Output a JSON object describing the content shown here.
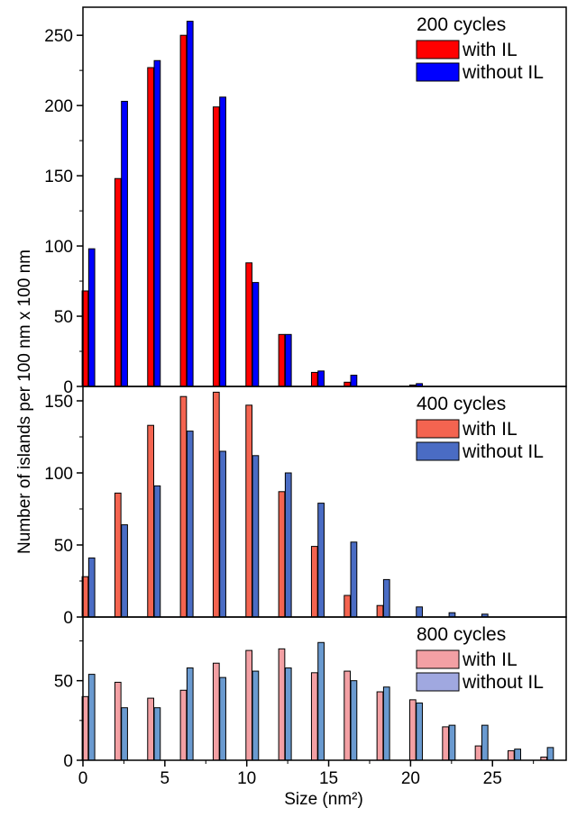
{
  "chart_data": {
    "type": "bar",
    "xlabel": "Size (nm²)",
    "ylabel": "Number of islands per 100 nm  x 100 nm",
    "x_ticks": [
      "0",
      "5",
      "10",
      "15",
      "20",
      "25"
    ],
    "x_tick_values": [
      0,
      5,
      10,
      15,
      20,
      25
    ],
    "xlim": [
      0,
      29.5
    ],
    "grid": false,
    "legend_placement": "top-right",
    "panels": [
      {
        "title": "200 cycles",
        "ylim": [
          0,
          270
        ],
        "y_ticks": [
          "0",
          "50",
          "100",
          "150",
          "200",
          "250"
        ],
        "y_tick_values": [
          0,
          50,
          100,
          150,
          200,
          250
        ],
        "x": [
          0,
          2,
          4,
          6,
          8,
          10,
          12,
          14,
          16,
          18,
          20
        ],
        "series": [
          {
            "name": "with IL",
            "color": "#ff0000",
            "values": [
              68,
              148,
              227,
              250,
              199,
              88,
              37,
              10,
              3,
              0,
              1
            ]
          },
          {
            "name": "without IL",
            "color": "#0000ff",
            "values": [
              98,
              203,
              232,
              260,
              206,
              74,
              37,
              11,
              8,
              0,
              2
            ]
          }
        ]
      },
      {
        "title": "400 cycles",
        "ylim": [
          0,
          160
        ],
        "y_ticks": [
          "0",
          "50",
          "100",
          "150"
        ],
        "y_tick_values": [
          0,
          50,
          100,
          150
        ],
        "x": [
          0,
          2,
          4,
          6,
          8,
          10,
          12,
          14,
          16,
          18,
          20,
          22,
          24
        ],
        "series": [
          {
            "name": "with IL",
            "color": "#f46450",
            "values": [
              28,
              86,
              133,
              153,
              156,
              147,
              87,
              49,
              15,
              8,
              0,
              0,
              0
            ]
          },
          {
            "name": "without IL",
            "color": "#4a6cc4",
            "values": [
              41,
              64,
              91,
              129,
              115,
              112,
              100,
              79,
              52,
              26,
              7,
              3,
              2
            ]
          }
        ]
      },
      {
        "title": "800 cycles",
        "ylim": [
          0,
          90
        ],
        "y_ticks": [
          "0",
          "50"
        ],
        "y_tick_values": [
          0,
          50
        ],
        "x": [
          0,
          2,
          4,
          6,
          8,
          10,
          12,
          14,
          16,
          18,
          20,
          22,
          24,
          26,
          28
        ],
        "series": [
          {
            "name": "with IL",
            "color": "#f3a0a4",
            "values": [
              40,
              49,
              39,
              44,
              61,
              69,
              70,
              55,
              56,
              43,
              38,
              21,
              9,
              6,
              2
            ]
          },
          {
            "name": "without IL",
            "color": "#a0a8e0",
            "values": [
              54,
              33,
              33,
              58,
              52,
              56,
              58,
              74,
              50,
              46,
              36,
              22,
              22,
              7,
              8
            ]
          },
          {
            "name": "",
            "color": "#6a9ad0",
            "values": []
          }
        ]
      }
    ]
  }
}
